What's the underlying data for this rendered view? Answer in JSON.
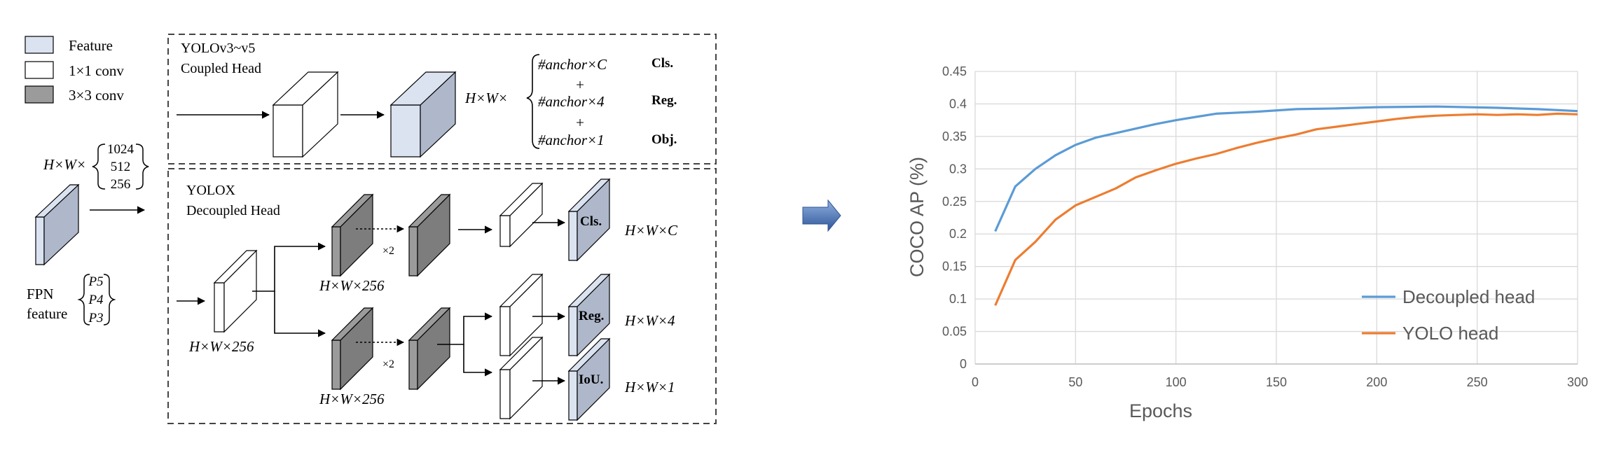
{
  "legend": {
    "feature": "Feature",
    "conv1": "1×1 conv",
    "conv3": "3×3 conv"
  },
  "fpn": {
    "dims_prefix": "H×W×",
    "channels": [
      "1024",
      "512",
      "256"
    ],
    "label_line1": "FPN",
    "label_line2": "feature",
    "levels": [
      "P5",
      "P4",
      "P3"
    ]
  },
  "coupled": {
    "title_line1": "YOLOv3~v5",
    "title_line2": "Coupled Head",
    "dims_prefix": "H×W×",
    "terms": [
      "#anchor×C",
      "+",
      "#anchor×4",
      "+",
      "#anchor×1"
    ],
    "outputs": [
      "Cls.",
      "Reg.",
      "Obj."
    ]
  },
  "decoupled": {
    "title_line1": "YOLOX",
    "title_line2": "Decoupled Head",
    "stem_dims": "H×W×256",
    "branch_dims_top": "H×W×256",
    "branch_dims_bottom": "H×W×256",
    "repeat_top": "×2",
    "repeat_bottom": "×2",
    "heads": [
      {
        "label": "Cls.",
        "dims": "H×W×C"
      },
      {
        "label": "Reg.",
        "dims": "H×W×4"
      },
      {
        "label": "IoU.",
        "dims": "H×W×1"
      }
    ]
  },
  "colors": {
    "feature_front": "#dbe3f1",
    "feature_side": "#aeb8ca",
    "conv3_front": "#9b9b9b",
    "conv3_side": "#7d7d7d",
    "blue_series": "#5b9bd5",
    "orange_series": "#ed7d31",
    "arrow": "#4472c4"
  },
  "chart_data": {
    "type": "line",
    "xlabel": "Epochs",
    "ylabel": "COCO AP (%)",
    "xlim": [
      0,
      300
    ],
    "ylim": [
      0,
      0.45
    ],
    "xticks": [
      "0",
      "50",
      "100",
      "150",
      "200",
      "250",
      "300"
    ],
    "yticks": [
      "0",
      "0.05",
      "0.1",
      "0.15",
      "0.2",
      "0.25",
      "0.3",
      "0.35",
      "0.4",
      "0.45"
    ],
    "grid": true,
    "legend_position": "bottom-right",
    "series": [
      {
        "name": "Decoupled head",
        "color": "#5b9bd5",
        "x": [
          10,
          20,
          30,
          40,
          50,
          60,
          70,
          80,
          90,
          100,
          110,
          120,
          140,
          160,
          180,
          200,
          230,
          260,
          280,
          300
        ],
        "y": [
          0.204,
          0.273,
          0.3,
          0.321,
          0.337,
          0.348,
          0.355,
          0.362,
          0.369,
          0.375,
          0.38,
          0.385,
          0.388,
          0.392,
          0.393,
          0.395,
          0.396,
          0.394,
          0.392,
          0.389
        ]
      },
      {
        "name": "YOLO head",
        "color": "#ed7d31",
        "x": [
          10,
          20,
          30,
          40,
          50,
          60,
          70,
          80,
          90,
          100,
          110,
          120,
          130,
          140,
          150,
          160,
          170,
          180,
          190,
          200,
          210,
          220,
          230,
          240,
          250,
          260,
          270,
          280,
          290,
          300
        ],
        "y": [
          0.09,
          0.16,
          0.188,
          0.222,
          0.244,
          0.257,
          0.27,
          0.287,
          0.298,
          0.308,
          0.316,
          0.323,
          0.332,
          0.34,
          0.347,
          0.353,
          0.361,
          0.365,
          0.369,
          0.373,
          0.377,
          0.38,
          0.382,
          0.383,
          0.384,
          0.383,
          0.384,
          0.383,
          0.385,
          0.384
        ]
      }
    ]
  }
}
